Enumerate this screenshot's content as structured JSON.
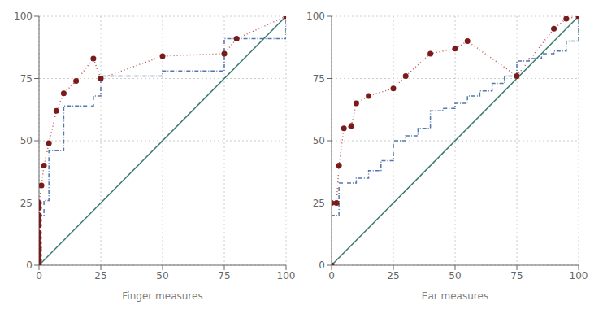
{
  "chart_data": [
    {
      "type": "line",
      "x_label": "Finger measures",
      "xlim": [
        0,
        100
      ],
      "ylim": [
        0,
        100
      ],
      "xticks": [
        0,
        25,
        50,
        75,
        100
      ],
      "yticks": [
        0,
        25,
        50,
        75,
        100
      ],
      "grid": true,
      "series": [
        {
          "type": "line",
          "x": [
            0,
            100
          ],
          "values": [
            0,
            100
          ],
          "color": "#3a7a70",
          "line_style": "solid"
        },
        {
          "type": "step",
          "x": [
            0,
            0,
            1,
            2,
            4,
            7,
            10,
            15,
            22,
            25,
            50,
            75,
            80,
            100
          ],
          "values": [
            0,
            20,
            20,
            26,
            46,
            46,
            64,
            64,
            68,
            76,
            78,
            91,
            91,
            100
          ],
          "color": "#5577aa",
          "line_style": "dashdot"
        },
        {
          "type": "line",
          "x": [
            0,
            0,
            0,
            0,
            0,
            0,
            0,
            0,
            0,
            0,
            0,
            0,
            0,
            1,
            2,
            4,
            7,
            10,
            15,
            22,
            25,
            50,
            75,
            80,
            100
          ],
          "values": [
            0,
            2,
            4,
            6,
            7,
            9,
            11,
            13,
            16,
            18,
            20,
            23,
            25,
            32,
            40,
            49,
            62,
            69,
            74,
            83,
            75,
            84,
            85,
            91,
            100
          ],
          "color": "#bb5555",
          "line_style": "dotted"
        },
        {
          "type": "scatter",
          "x": [
            0,
            0,
            0,
            0,
            0,
            0,
            0,
            0,
            0,
            0,
            0,
            0,
            0,
            1,
            2,
            4,
            7,
            10,
            15,
            22,
            25,
            50,
            75,
            80,
            100
          ],
          "values": [
            0,
            2,
            4,
            6,
            7,
            9,
            11,
            13,
            16,
            18,
            20,
            23,
            25,
            32,
            40,
            49,
            62,
            69,
            74,
            83,
            75,
            84,
            85,
            91,
            100
          ],
          "color": "#7a1a1a",
          "marker": "circle"
        }
      ]
    },
    {
      "type": "line",
      "x_label": "Ear measures",
      "xlim": [
        0,
        100
      ],
      "ylim": [
        0,
        100
      ],
      "xticks": [
        0,
        25,
        50,
        75,
        100
      ],
      "yticks": [
        0,
        25,
        50,
        75,
        100
      ],
      "grid": true,
      "series": [
        {
          "type": "line",
          "x": [
            0,
            100
          ],
          "values": [
            0,
            100
          ],
          "color": "#3a7a70",
          "line_style": "solid"
        },
        {
          "type": "step",
          "x": [
            0,
            0,
            2,
            3,
            5,
            8,
            10,
            15,
            20,
            25,
            30,
            35,
            40,
            45,
            50,
            55,
            60,
            65,
            70,
            75,
            80,
            85,
            90,
            95,
            100
          ],
          "values": [
            0,
            20,
            20,
            33,
            33,
            33,
            35,
            38,
            42,
            50,
            52,
            55,
            62,
            63,
            65,
            68,
            70,
            73,
            76,
            82,
            83,
            85,
            86,
            90,
            100
          ],
          "color": "#5577aa",
          "line_style": "dashdot"
        },
        {
          "type": "line",
          "x": [
            0,
            0,
            2,
            3,
            5,
            8,
            10,
            15,
            25,
            30,
            40,
            50,
            55,
            75,
            90,
            95,
            100
          ],
          "values": [
            0,
            25,
            25,
            40,
            55,
            56,
            65,
            68,
            71,
            76,
            85,
            87,
            90,
            76,
            95,
            99,
            100
          ],
          "color": "#bb5555",
          "line_style": "dotted"
        },
        {
          "type": "scatter",
          "x": [
            0,
            0,
            2,
            3,
            5,
            8,
            10,
            15,
            25,
            30,
            40,
            50,
            55,
            75,
            90,
            95,
            100
          ],
          "values": [
            0,
            25,
            25,
            40,
            55,
            56,
            65,
            68,
            71,
            76,
            85,
            87,
            90,
            76,
            95,
            99,
            100
          ],
          "color": "#7a1a1a",
          "marker": "circle"
        }
      ]
    }
  ]
}
